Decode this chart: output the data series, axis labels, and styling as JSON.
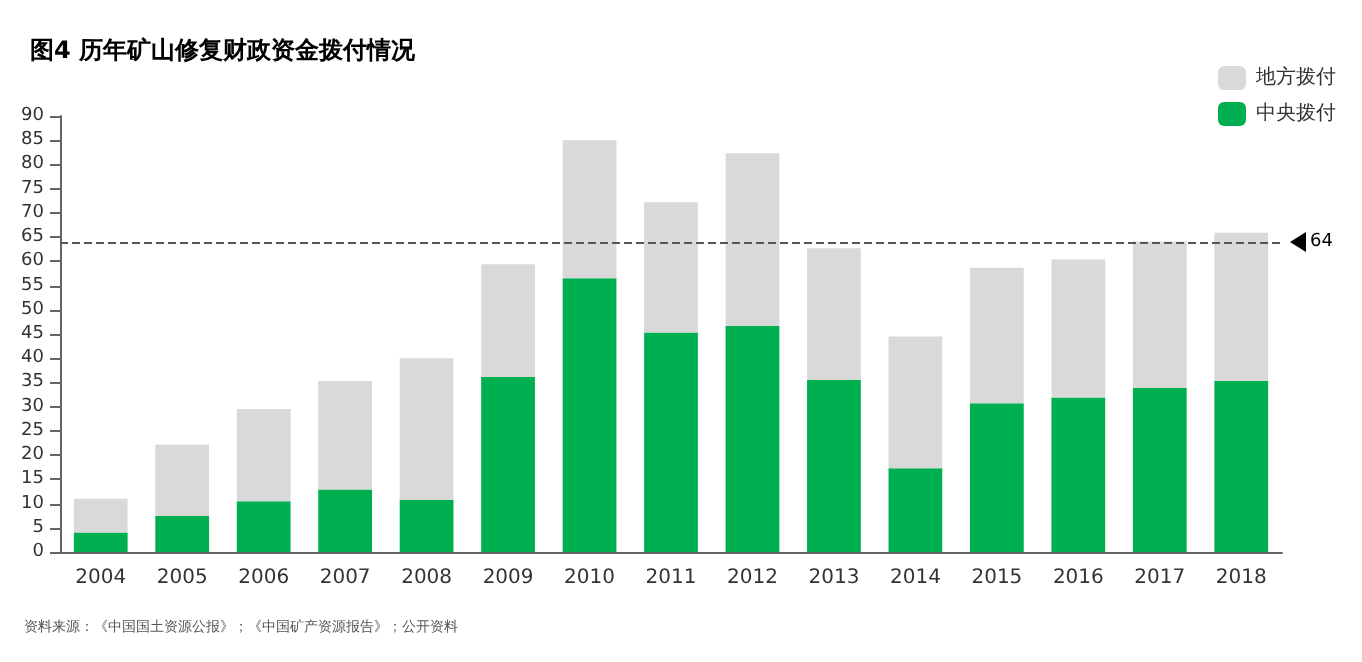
{
  "chart_data": {
    "type": "bar",
    "title": "图4 历年矿山修复财政资金拨付情况",
    "categories": [
      "2004",
      "2005",
      "2006",
      "2007",
      "2008",
      "2009",
      "2010",
      "2011",
      "2012",
      "2013",
      "2014",
      "2015",
      "2016",
      "2017",
      "2018"
    ],
    "stacked": true,
    "series": [
      {
        "name": "中央拨付",
        "color": "#00b050",
        "values": [
          4,
          7.5,
          10.5,
          12.9,
          10.8,
          36.1,
          56.5,
          45.3,
          46.7,
          35.5,
          17.3,
          30.7,
          31.9,
          33.9,
          35.3
        ]
      },
      {
        "name": "地方拨付",
        "color": "#d9d9d9",
        "values": [
          7,
          14.7,
          19,
          22.4,
          29.2,
          23.3,
          28.5,
          26.9,
          35.6,
          27.2,
          27.2,
          28,
          28.5,
          30.2,
          30.6
        ]
      }
    ],
    "ylim": [
      0,
      90
    ],
    "yticks": [
      0,
      5,
      10,
      15,
      20,
      25,
      30,
      35,
      40,
      45,
      50,
      55,
      60,
      65,
      70,
      75,
      80,
      85,
      90
    ],
    "ref_lines": [
      {
        "axis": "y",
        "value": 64,
        "label": "64",
        "color": "#555555",
        "line_style": "dashed"
      }
    ],
    "legend": "top right",
    "grid": false,
    "annotations": [
      "资料来源：《中国国土资源公报》；《中国矿产资源报告》；公开资料"
    ]
  }
}
